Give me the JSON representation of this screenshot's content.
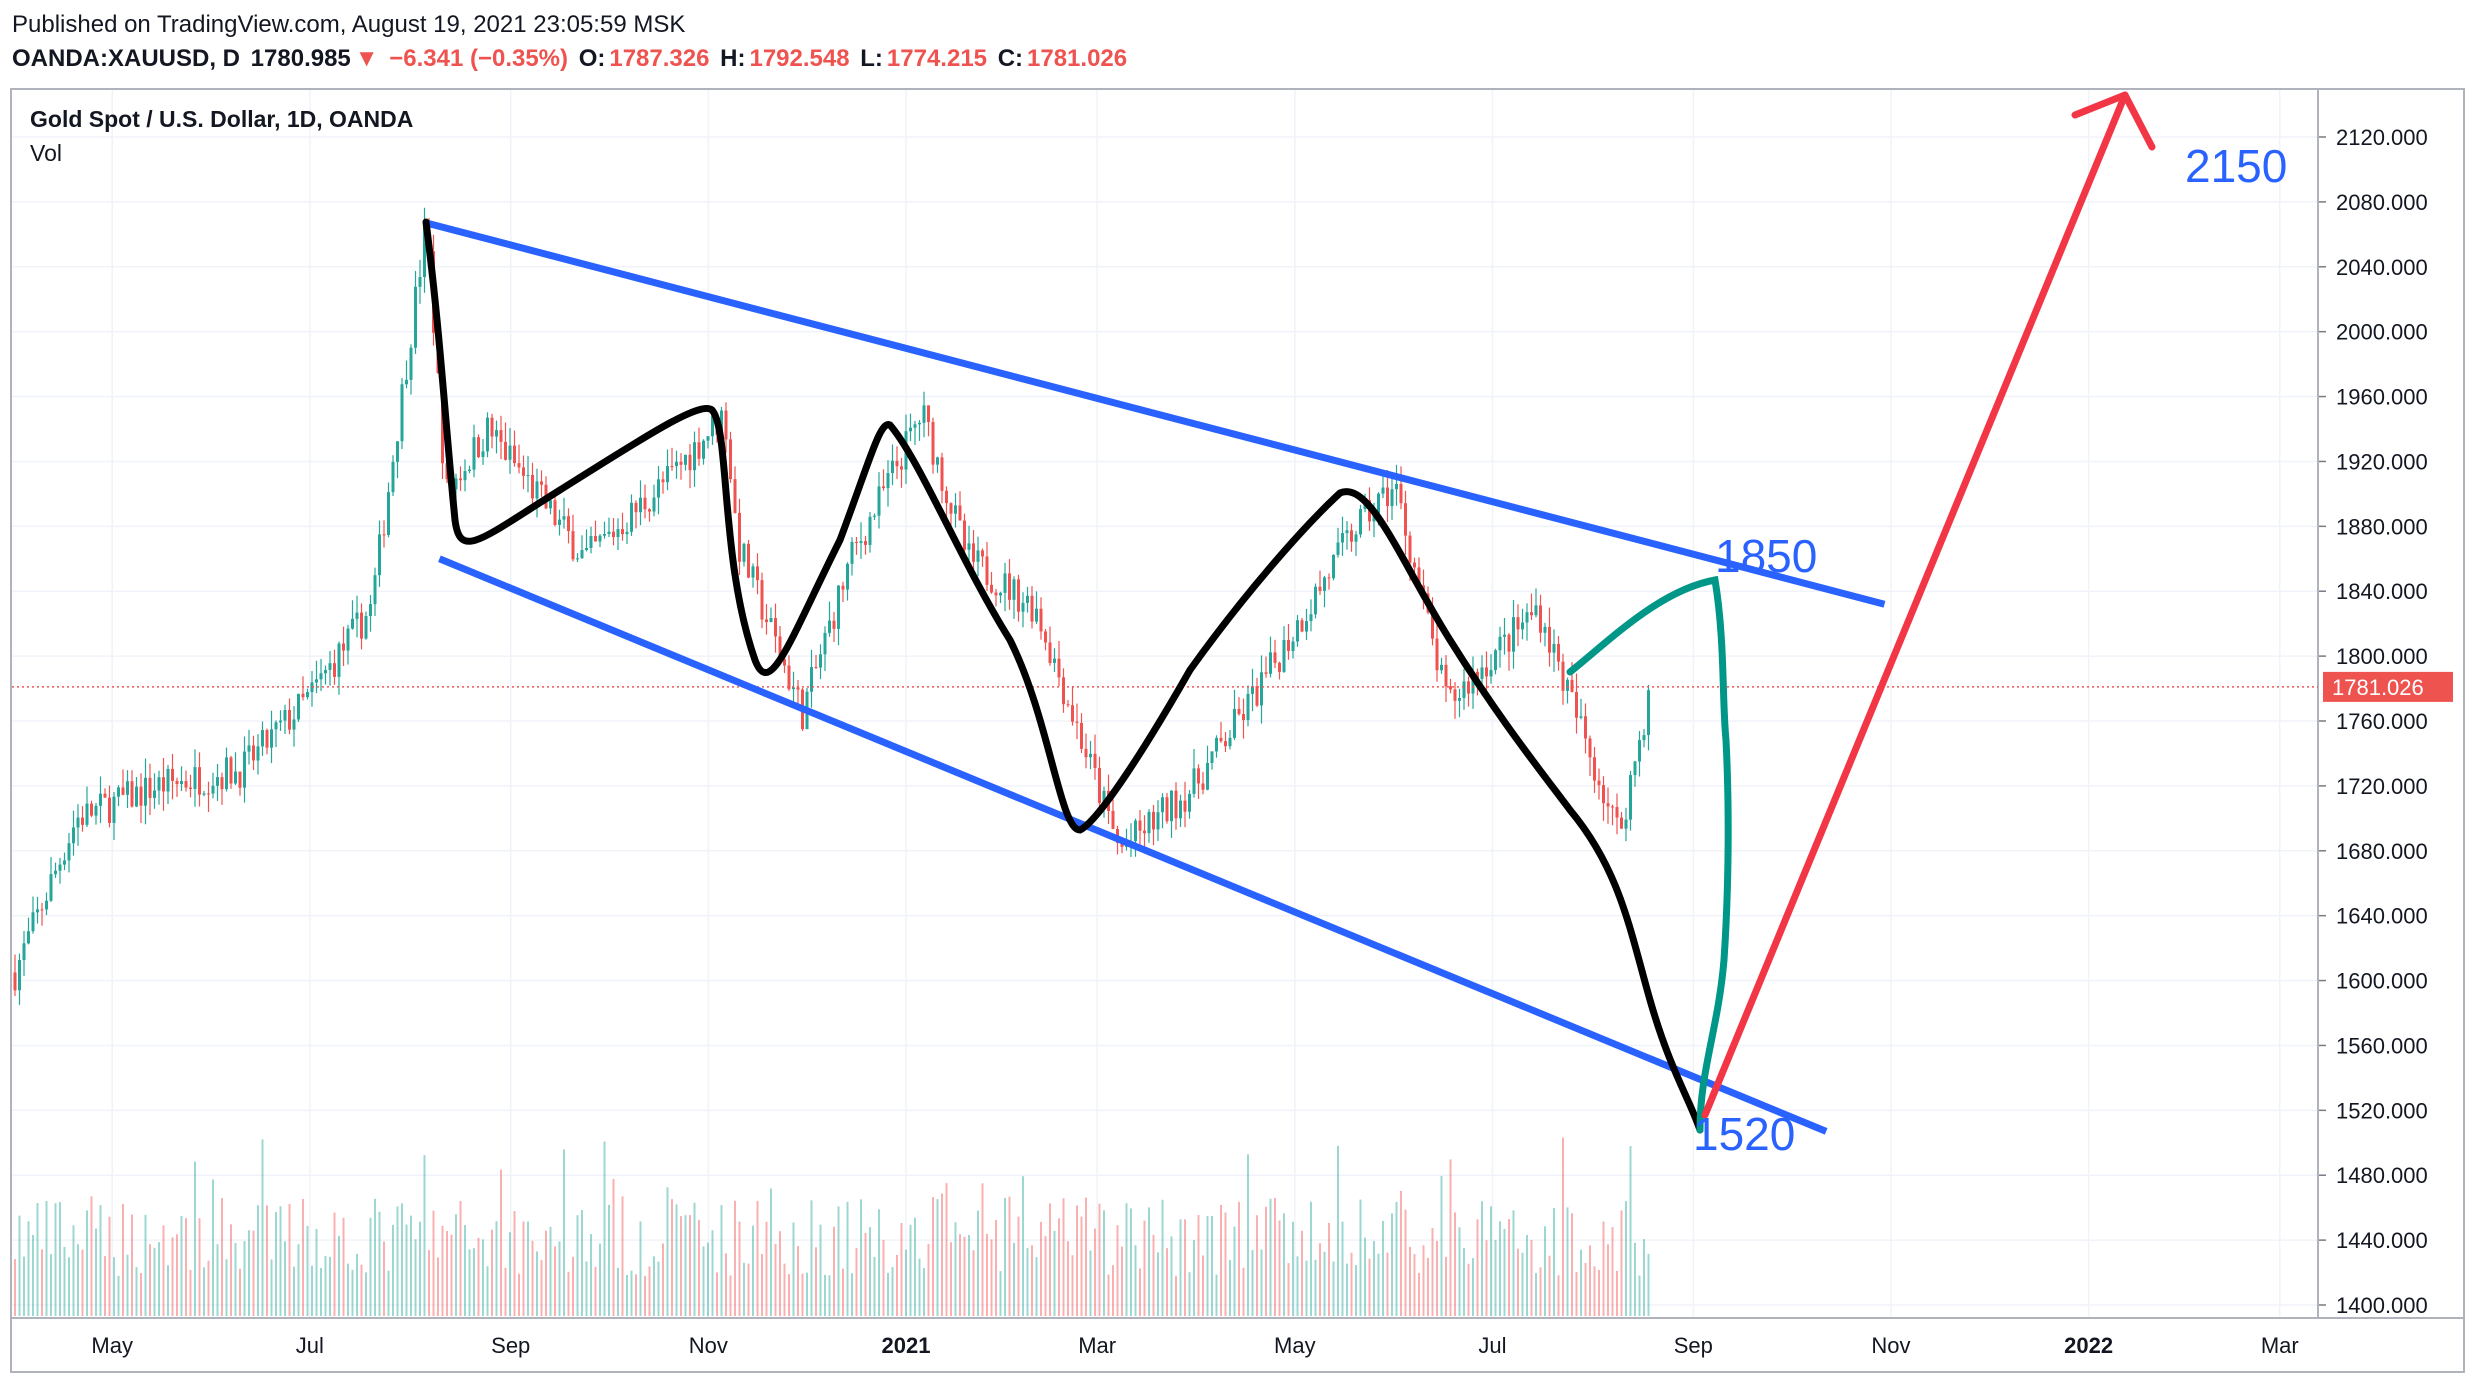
{
  "header": {
    "published": "Published on TradingView.com, August 19, 2021 23:05:59 MSK",
    "symbol": "OANDA:XAUUSD, D",
    "last": "1780.985",
    "change": "−6.341 (−0.35%)",
    "open_label": "O:",
    "open": "1787.326",
    "high_label": "H:",
    "high": "1792.548",
    "low_label": "L:",
    "low": "1774.215",
    "close_label": "C:",
    "close": "1781.026"
  },
  "legend": {
    "title": "Gold Spot / U.S. Dollar, 1D, OANDA",
    "vol": "Vol"
  },
  "colors": {
    "up": "#26a69a",
    "down": "#ef5350",
    "channel": "#2962ff",
    "path": "#000000",
    "projection": "#009688",
    "target": "#f23645",
    "grid": "#f0f3fa"
  },
  "chart_data": {
    "type": "candlestick",
    "price_scale": {
      "ylim": [
        1390,
        2150
      ],
      "ticks": [
        "2120.000",
        "2080.000",
        "2040.000",
        "2000.000",
        "1960.000",
        "1920.000",
        "1880.000",
        "1840.000",
        "1800.000",
        "1760.000",
        "1720.000",
        "1680.000",
        "1640.000",
        "1600.000",
        "1560.000",
        "1520.000",
        "1480.000",
        "1440.000",
        "1400.000"
      ]
    },
    "time_axis": [
      "May",
      "Jul",
      "Sep",
      "Nov",
      "2021",
      "Mar",
      "May",
      "Jul",
      "Sep",
      "Nov",
      "2022",
      "Mar"
    ],
    "current_price": "1781.026",
    "price_path": [
      [
        "2020-04-01",
        1605
      ],
      [
        "2020-04-20",
        1700
      ],
      [
        "2020-05-15",
        1720
      ],
      [
        "2020-06-10",
        1730
      ],
      [
        "2020-07-01",
        1775
      ],
      [
        "2020-07-20",
        1830
      ],
      [
        "2020-08-06",
        2067
      ],
      [
        "2020-08-12",
        1900
      ],
      [
        "2020-08-25",
        1940
      ],
      [
        "2020-09-24",
        1860
      ],
      [
        "2020-10-20",
        1910
      ],
      [
        "2020-11-06",
        1950
      ],
      [
        "2020-11-10",
        1870
      ],
      [
        "2020-11-30",
        1765
      ],
      [
        "2020-12-15",
        1860
      ],
      [
        "2021-01-06",
        1950
      ],
      [
        "2021-01-20",
        1860
      ],
      [
        "2021-02-10",
        1830
      ],
      [
        "2021-03-08",
        1680
      ],
      [
        "2021-03-31",
        1720
      ],
      [
        "2021-04-20",
        1780
      ],
      [
        "2021-05-20",
        1880
      ],
      [
        "2021-06-01",
        1905
      ],
      [
        "2021-06-17",
        1770
      ],
      [
        "2021-07-15",
        1830
      ],
      [
        "2021-08-09",
        1690
      ],
      [
        "2021-08-19",
        1781
      ]
    ],
    "annotations": {
      "channel_upper": [
        [
          "2020-08-06",
          2067
        ],
        [
          "2021-10-30",
          1832
        ]
      ],
      "channel_lower": [
        [
          "2020-08-10",
          1860
        ],
        [
          "2021-10-12",
          1507
        ]
      ],
      "label_1850": "1850",
      "label_1520": "1520",
      "label_2150": "2150"
    }
  }
}
